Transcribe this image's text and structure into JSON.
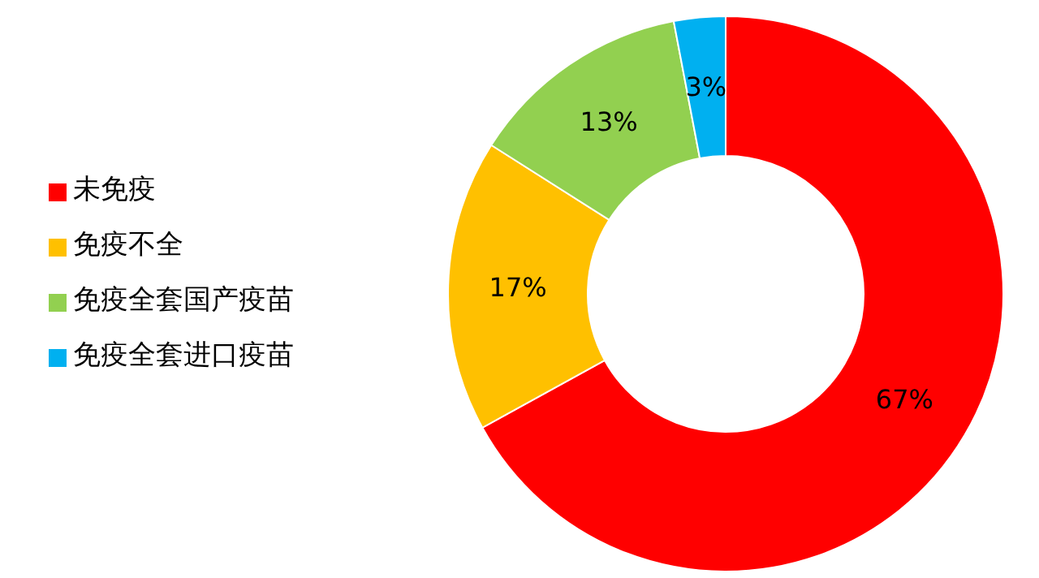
{
  "chart_data": {
    "type": "donut",
    "categories": [
      "未免疫",
      "免疫不全",
      "免疫全套国产疫苗",
      "免疫全套进口疫苗"
    ],
    "values": [
      67,
      17,
      13,
      3
    ],
    "value_labels": [
      "67%",
      "17%",
      "13%",
      "3%"
    ],
    "colors": [
      "#ff0000",
      "#ffc000",
      "#92d050",
      "#00b0f0"
    ],
    "legend": "left"
  }
}
